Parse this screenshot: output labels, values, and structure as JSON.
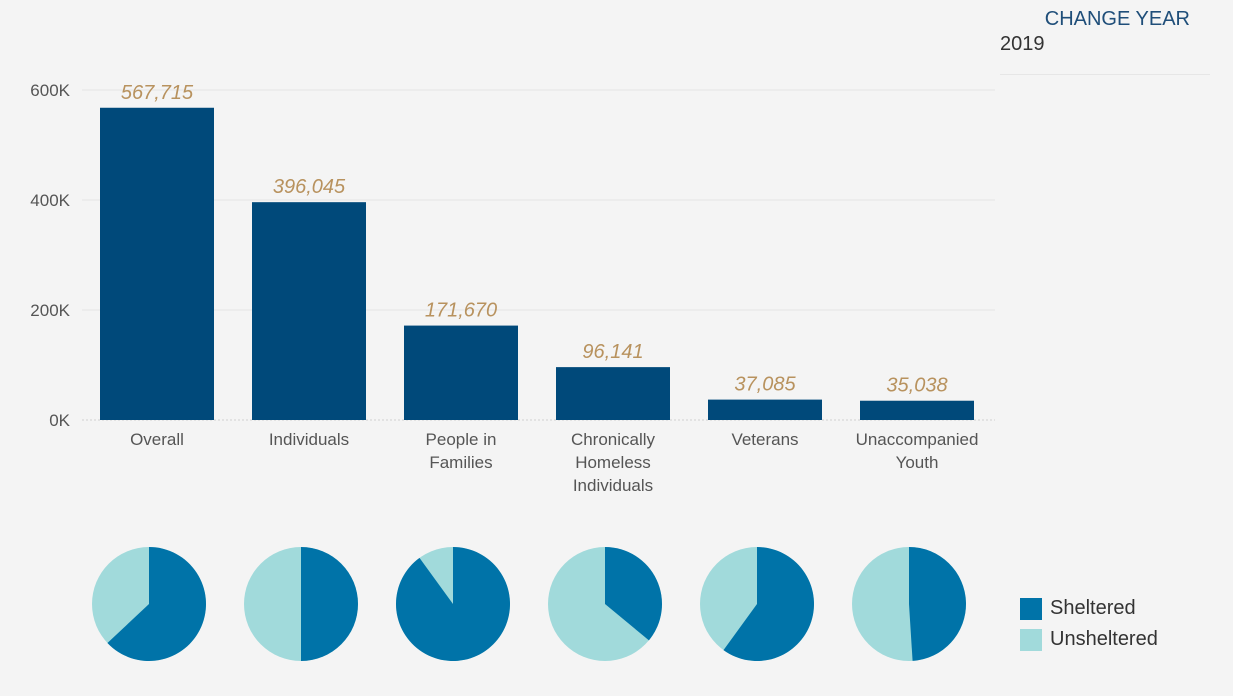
{
  "filter": {
    "title": "CHANGE YEAR",
    "value": "2019"
  },
  "colors": {
    "bar": "#00497a",
    "sheltered": "#0073a8",
    "unsheltered": "#a1dadb",
    "data_label": "#b8925e"
  },
  "chart_data": [
    {
      "type": "bar",
      "categories": [
        "Overall",
        "Individuals",
        "People in Families",
        "Chronically Homeless Individuals",
        "Veterans",
        "Unaccompanied Youth"
      ],
      "category_lines": [
        [
          "Overall"
        ],
        [
          "Individuals"
        ],
        [
          "People in",
          "Families"
        ],
        [
          "Chronically",
          "Homeless",
          "Individuals"
        ],
        [
          "Veterans"
        ],
        [
          "Unaccompanied",
          "Youth"
        ]
      ],
      "values": [
        567715,
        396045,
        171670,
        96141,
        37085,
        35038
      ],
      "data_labels": [
        "567,715",
        "396,045",
        "171,670",
        "96,141",
        "37,085",
        "35,038"
      ],
      "yticks": [
        0,
        200000,
        400000,
        600000
      ],
      "ytick_labels": [
        "0K",
        "200K",
        "400K",
        "600K"
      ],
      "ylim": [
        0,
        600000
      ],
      "grid": true
    },
    {
      "type": "pie",
      "series": [
        "Sheltered",
        "Unsheltered"
      ],
      "values": [
        [
          0.63,
          0.37
        ],
        [
          0.5,
          0.5
        ],
        [
          0.9,
          0.1
        ],
        [
          0.36,
          0.64
        ],
        [
          0.6,
          0.4
        ],
        [
          0.49,
          0.51
        ]
      ]
    }
  ],
  "legend": {
    "position": "bottom-right",
    "items": [
      {
        "label": "Sheltered",
        "color": "#0073a8"
      },
      {
        "label": "Unsheltered",
        "color": "#a1dadb"
      }
    ]
  }
}
